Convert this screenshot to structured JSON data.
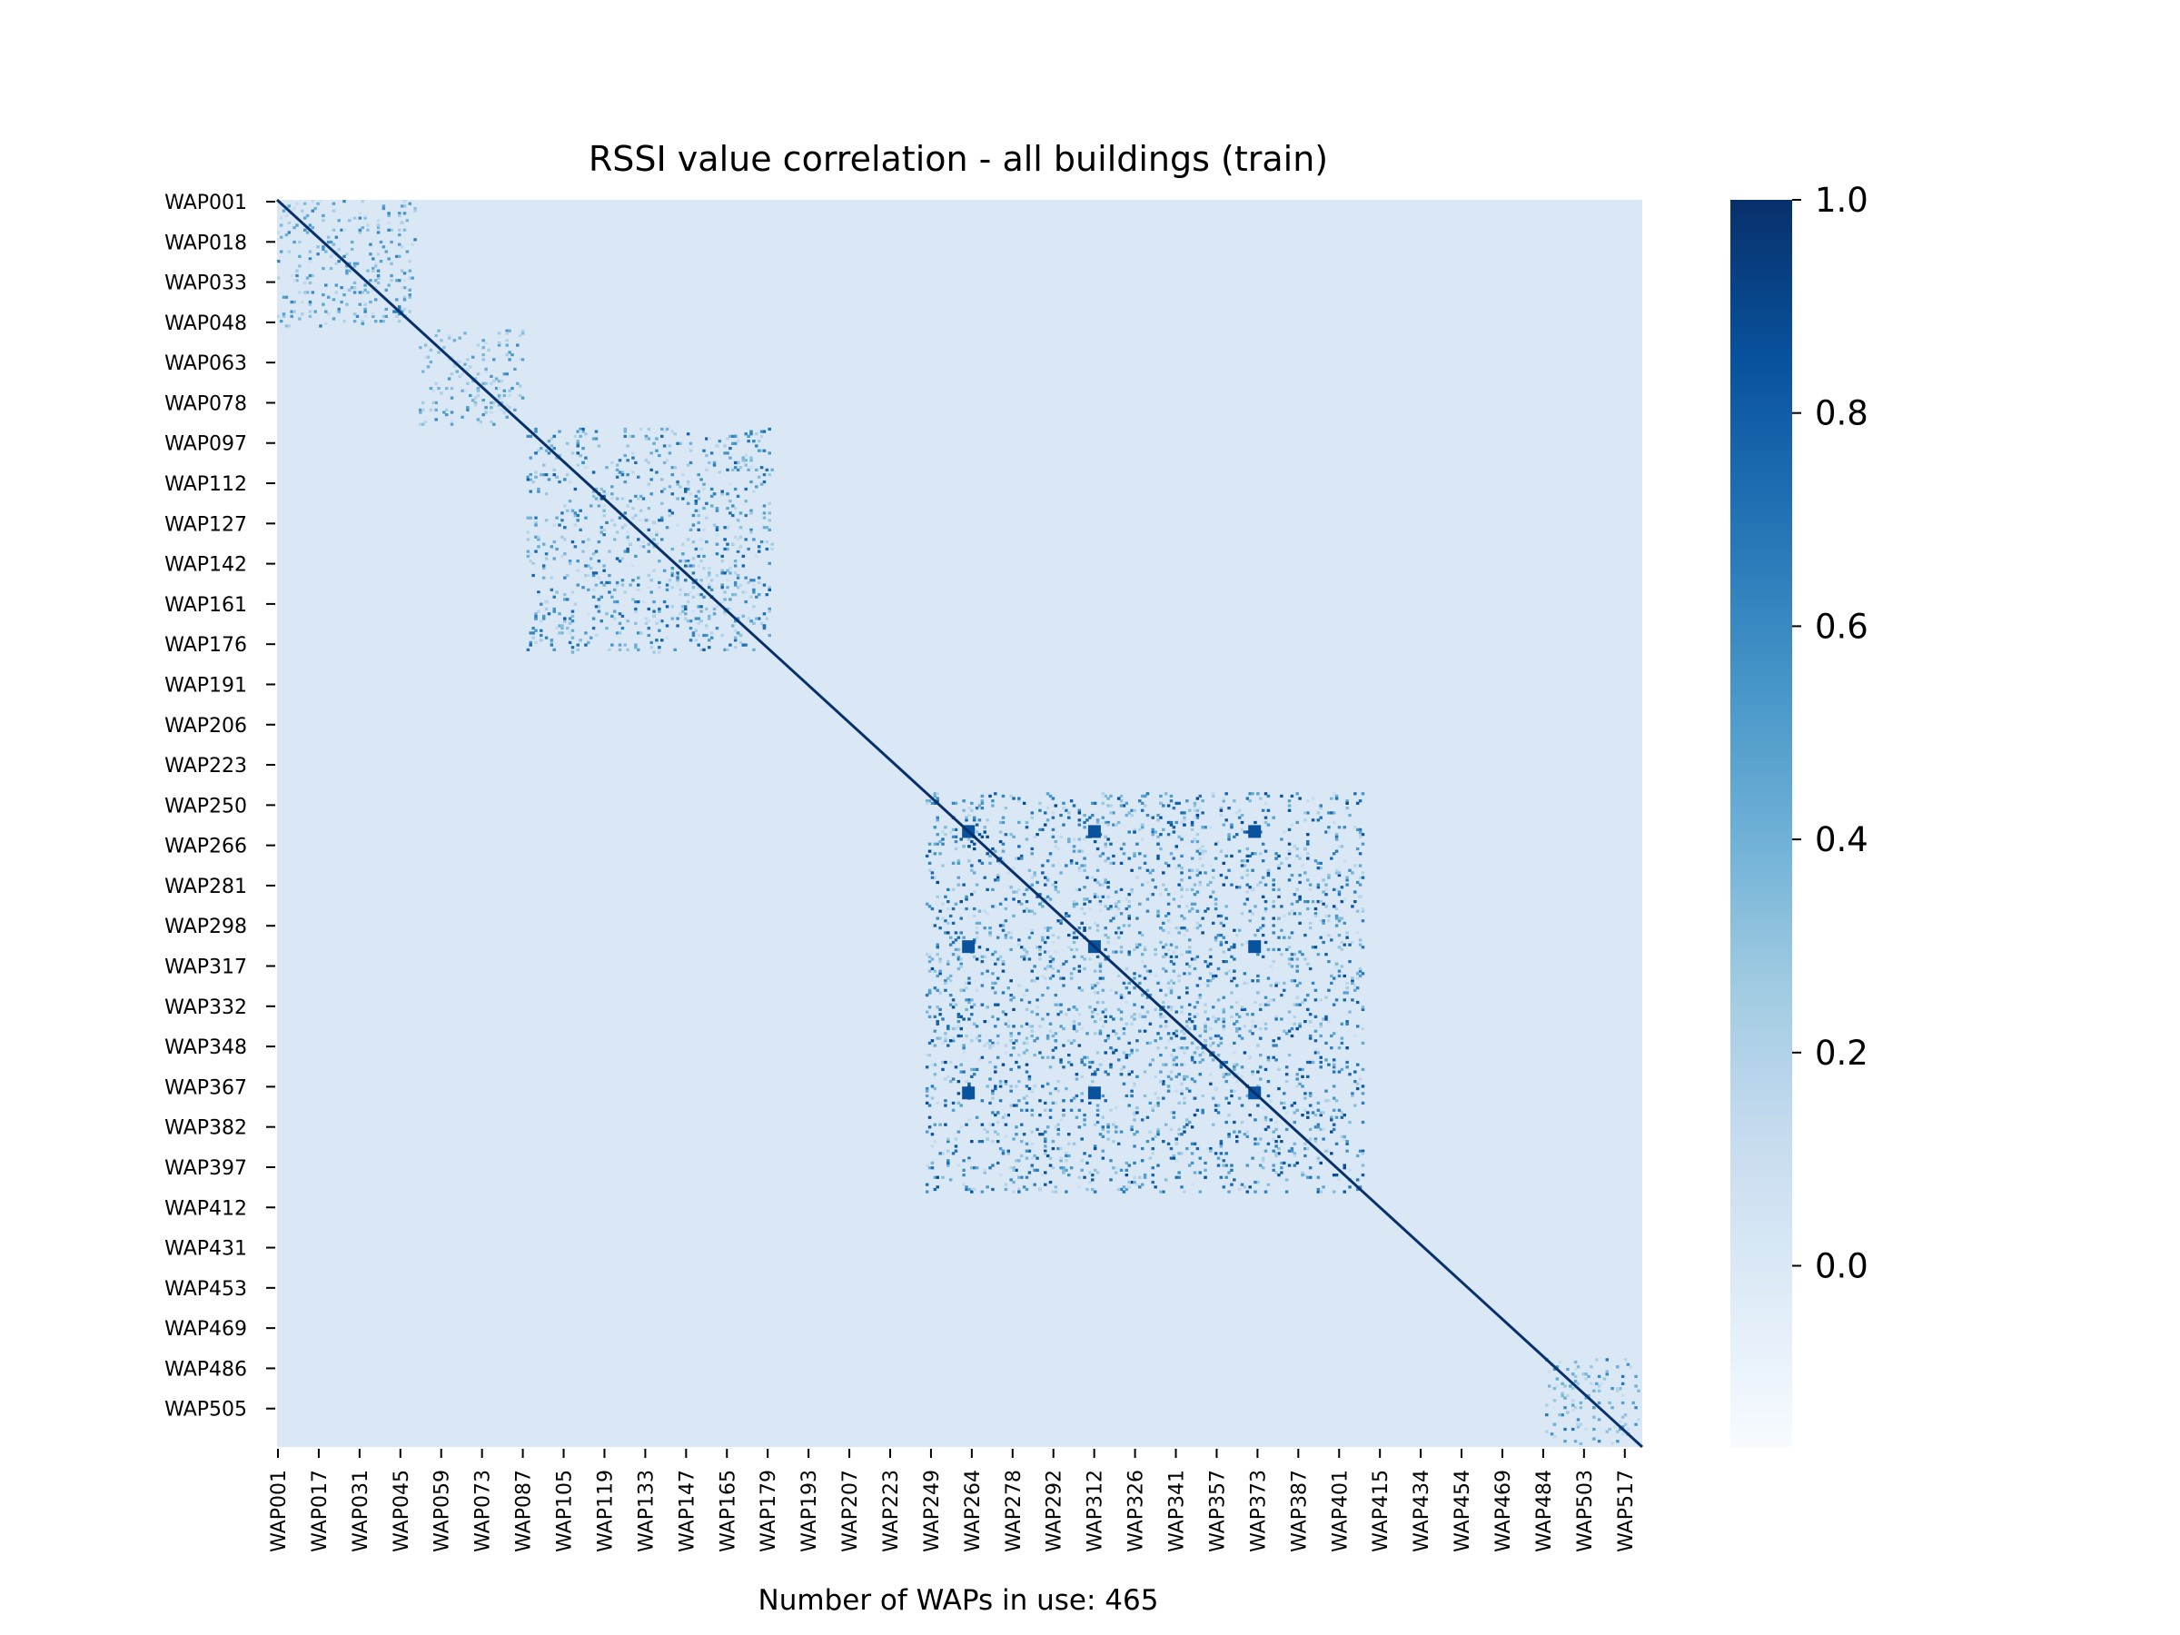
{
  "chart_data": {
    "type": "heatmap",
    "title": "RSSI value correlation - all buildings (train)",
    "xlabel": "Number of WAPs in use: 465",
    "ylabel": "",
    "y_tick_labels": [
      "WAP001",
      "WAP018",
      "WAP033",
      "WAP048",
      "WAP063",
      "WAP078",
      "WAP097",
      "WAP112",
      "WAP127",
      "WAP142",
      "WAP161",
      "WAP176",
      "WAP191",
      "WAP206",
      "WAP223",
      "WAP250",
      "WAP266",
      "WAP281",
      "WAP298",
      "WAP317",
      "WAP332",
      "WAP348",
      "WAP367",
      "WAP382",
      "WAP397",
      "WAP412",
      "WAP431",
      "WAP453",
      "WAP469",
      "WAP486",
      "WAP505"
    ],
    "x_tick_labels": [
      "WAP001",
      "WAP017",
      "WAP031",
      "WAP045",
      "WAP059",
      "WAP073",
      "WAP087",
      "WAP105",
      "WAP119",
      "WAP133",
      "WAP147",
      "WAP165",
      "WAP179",
      "WAP193",
      "WAP207",
      "WAP223",
      "WAP249",
      "WAP264",
      "WAP278",
      "WAP292",
      "WAP312",
      "WAP326",
      "WAP341",
      "WAP357",
      "WAP373",
      "WAP387",
      "WAP401",
      "WAP415",
      "WAP434",
      "WAP454",
      "WAP469",
      "WAP484",
      "WAP503",
      "WAP517"
    ],
    "n_variables": 465,
    "colormap": "Blues",
    "value_range": [
      -0.17,
      1.0
    ],
    "colorbar_ticks": [
      "1.0",
      "0.8",
      "0.6",
      "0.4",
      "0.2",
      "0.0"
    ],
    "colorbar_tick_values": [
      1.0,
      0.8,
      0.6,
      0.4,
      0.2,
      0.0
    ],
    "background_correlation": 0.0,
    "diagonal_value": 1.0,
    "blocks": [
      {
        "from": "WAP001",
        "to": "WAP054",
        "max_correlation": 0.65
      },
      {
        "from": "WAP055",
        "to": "WAP095",
        "max_correlation": 0.6
      },
      {
        "from": "WAP096",
        "to": "WAP190",
        "max_correlation": 0.8
      },
      {
        "from": "WAP248",
        "to": "WAP415",
        "max_correlation": 0.9
      },
      {
        "from": "WAP484",
        "to": "WAP520",
        "max_correlation": 0.7
      }
    ]
  }
}
